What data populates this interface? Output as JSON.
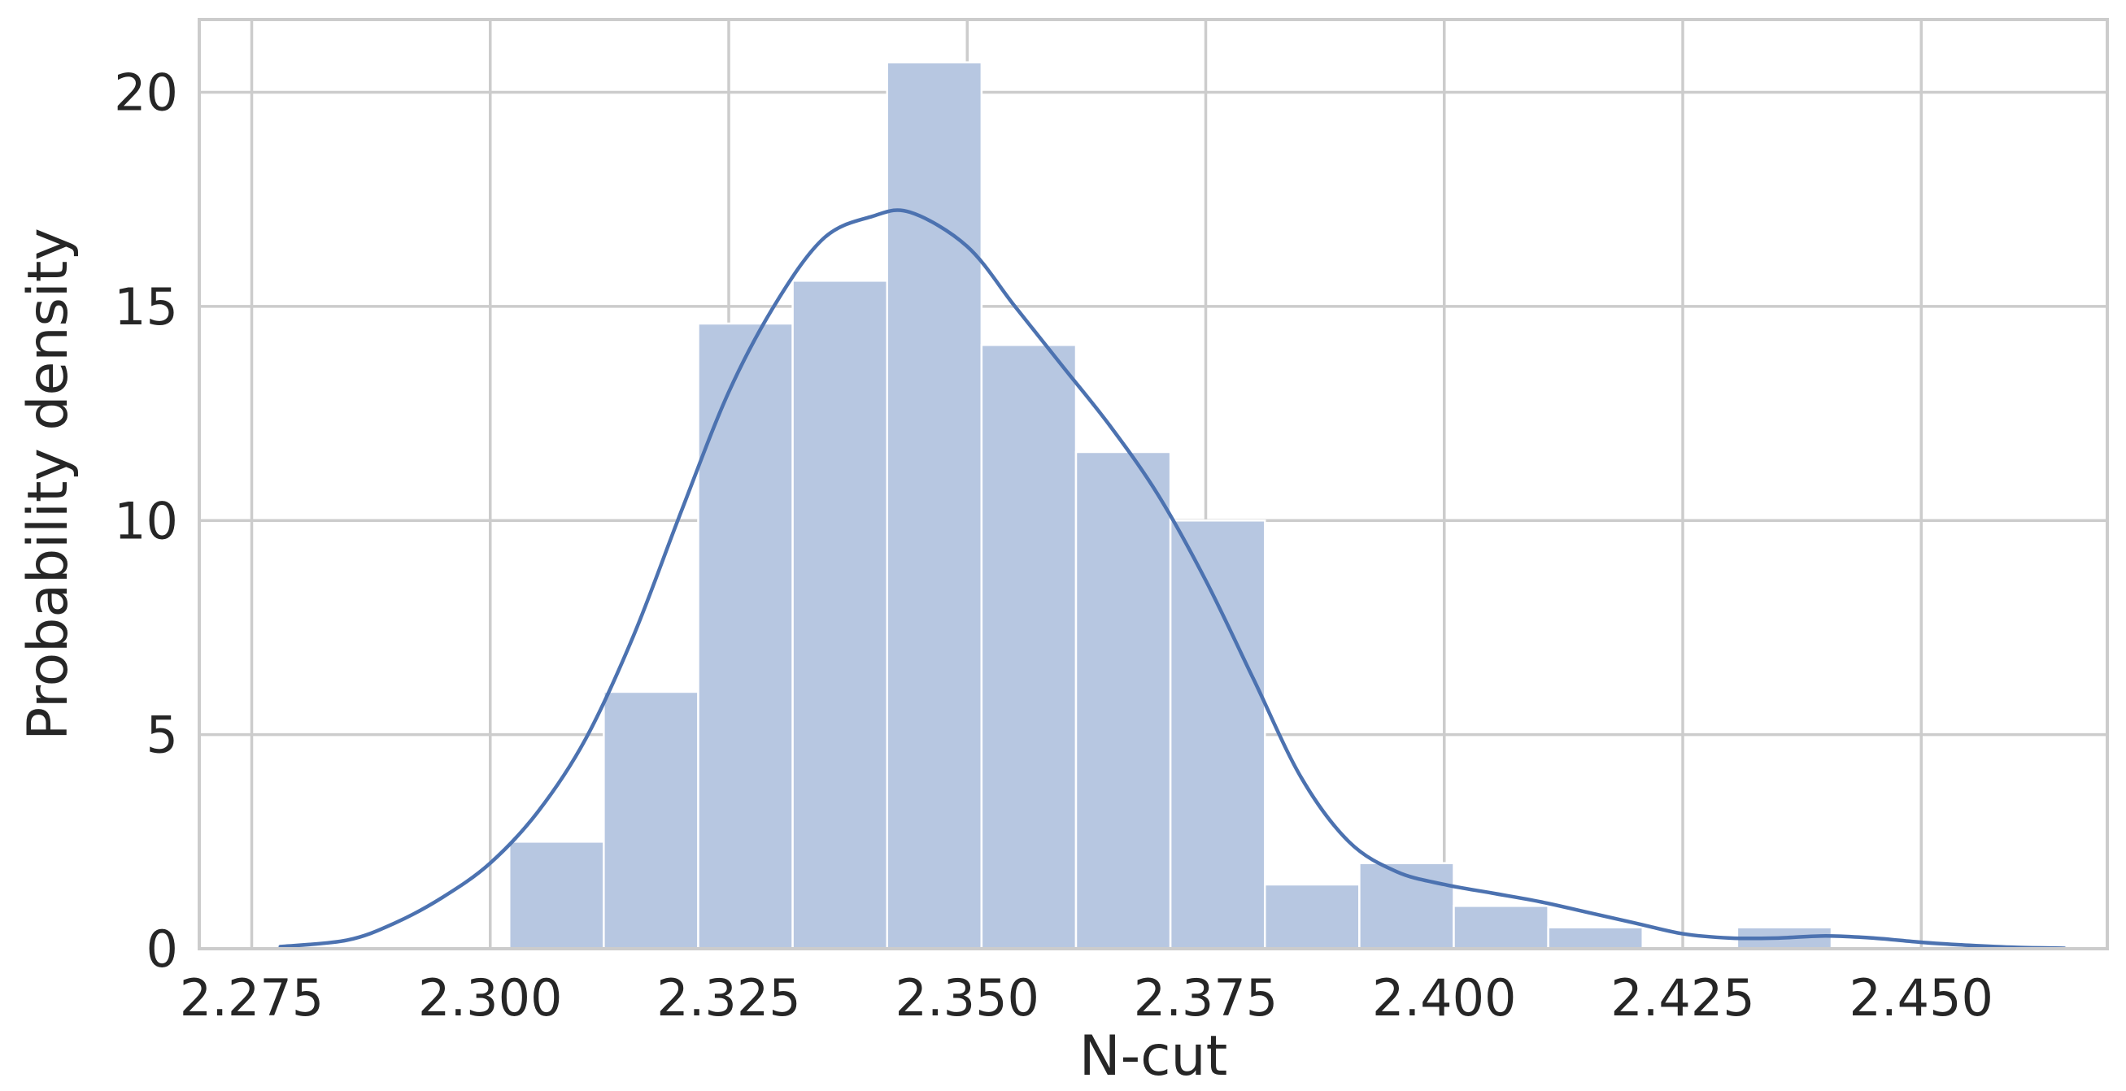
{
  "chart_data": {
    "type": "bar",
    "title": "",
    "xlabel": "N-cut",
    "ylabel": "Probability density",
    "xlim": [
      2.2695,
      2.4695
    ],
    "ylim": [
      0,
      21.7
    ],
    "grid": true,
    "x_ticks": [
      {
        "value": 2.275,
        "label": "2.275"
      },
      {
        "value": 2.3,
        "label": "2.300"
      },
      {
        "value": 2.325,
        "label": "2.325"
      },
      {
        "value": 2.35,
        "label": "2.350"
      },
      {
        "value": 2.375,
        "label": "2.375"
      },
      {
        "value": 2.4,
        "label": "2.400"
      },
      {
        "value": 2.425,
        "label": "2.425"
      },
      {
        "value": 2.45,
        "label": "2.450"
      }
    ],
    "y_ticks": [
      {
        "value": 0,
        "label": "0"
      },
      {
        "value": 5,
        "label": "5"
      },
      {
        "value": 10,
        "label": "10"
      },
      {
        "value": 15,
        "label": "15"
      },
      {
        "value": 20,
        "label": "20"
      }
    ],
    "bin_edges": [
      2.302,
      2.3119,
      2.3218,
      2.3317,
      2.3416,
      2.3515,
      2.3614,
      2.3713,
      2.3812,
      2.3911,
      2.401,
      2.4109,
      2.4208,
      2.4307,
      2.4406
    ],
    "values": [
      2.5,
      6.0,
      14.6,
      15.6,
      20.7,
      14.1,
      11.6,
      10.0,
      1.5,
      2.0,
      1.0,
      0.5,
      0,
      0.5
    ],
    "kde": {
      "x": [
        2.278,
        2.285,
        2.29,
        2.295,
        2.3,
        2.305,
        2.31,
        2.315,
        2.32,
        2.325,
        2.33,
        2.335,
        2.34,
        2.344,
        2.35,
        2.355,
        2.36,
        2.365,
        2.37,
        2.375,
        2.38,
        2.385,
        2.39,
        2.395,
        2.4,
        2.405,
        2.41,
        2.415,
        2.42,
        2.425,
        2.43,
        2.435,
        2.44,
        2.445,
        2.45,
        2.455,
        2.46,
        2.465
      ],
      "y": [
        0.05,
        0.2,
        0.6,
        1.2,
        2.0,
        3.2,
        4.9,
        7.3,
        10.2,
        13.0,
        15.1,
        16.6,
        17.1,
        17.2,
        16.4,
        15.0,
        13.6,
        12.2,
        10.6,
        8.6,
        6.3,
        4.0,
        2.5,
        1.8,
        1.5,
        1.3,
        1.1,
        0.85,
        0.6,
        0.35,
        0.25,
        0.25,
        0.3,
        0.25,
        0.15,
        0.08,
        0.03,
        0.01
      ]
    },
    "colors": {
      "bar_fill": "#b7c7e1",
      "bar_edge": "#ffffff",
      "kde_line": "#4c72b0",
      "grid": "#cccccc",
      "frame": "#cccccc",
      "text": "#262626"
    }
  }
}
